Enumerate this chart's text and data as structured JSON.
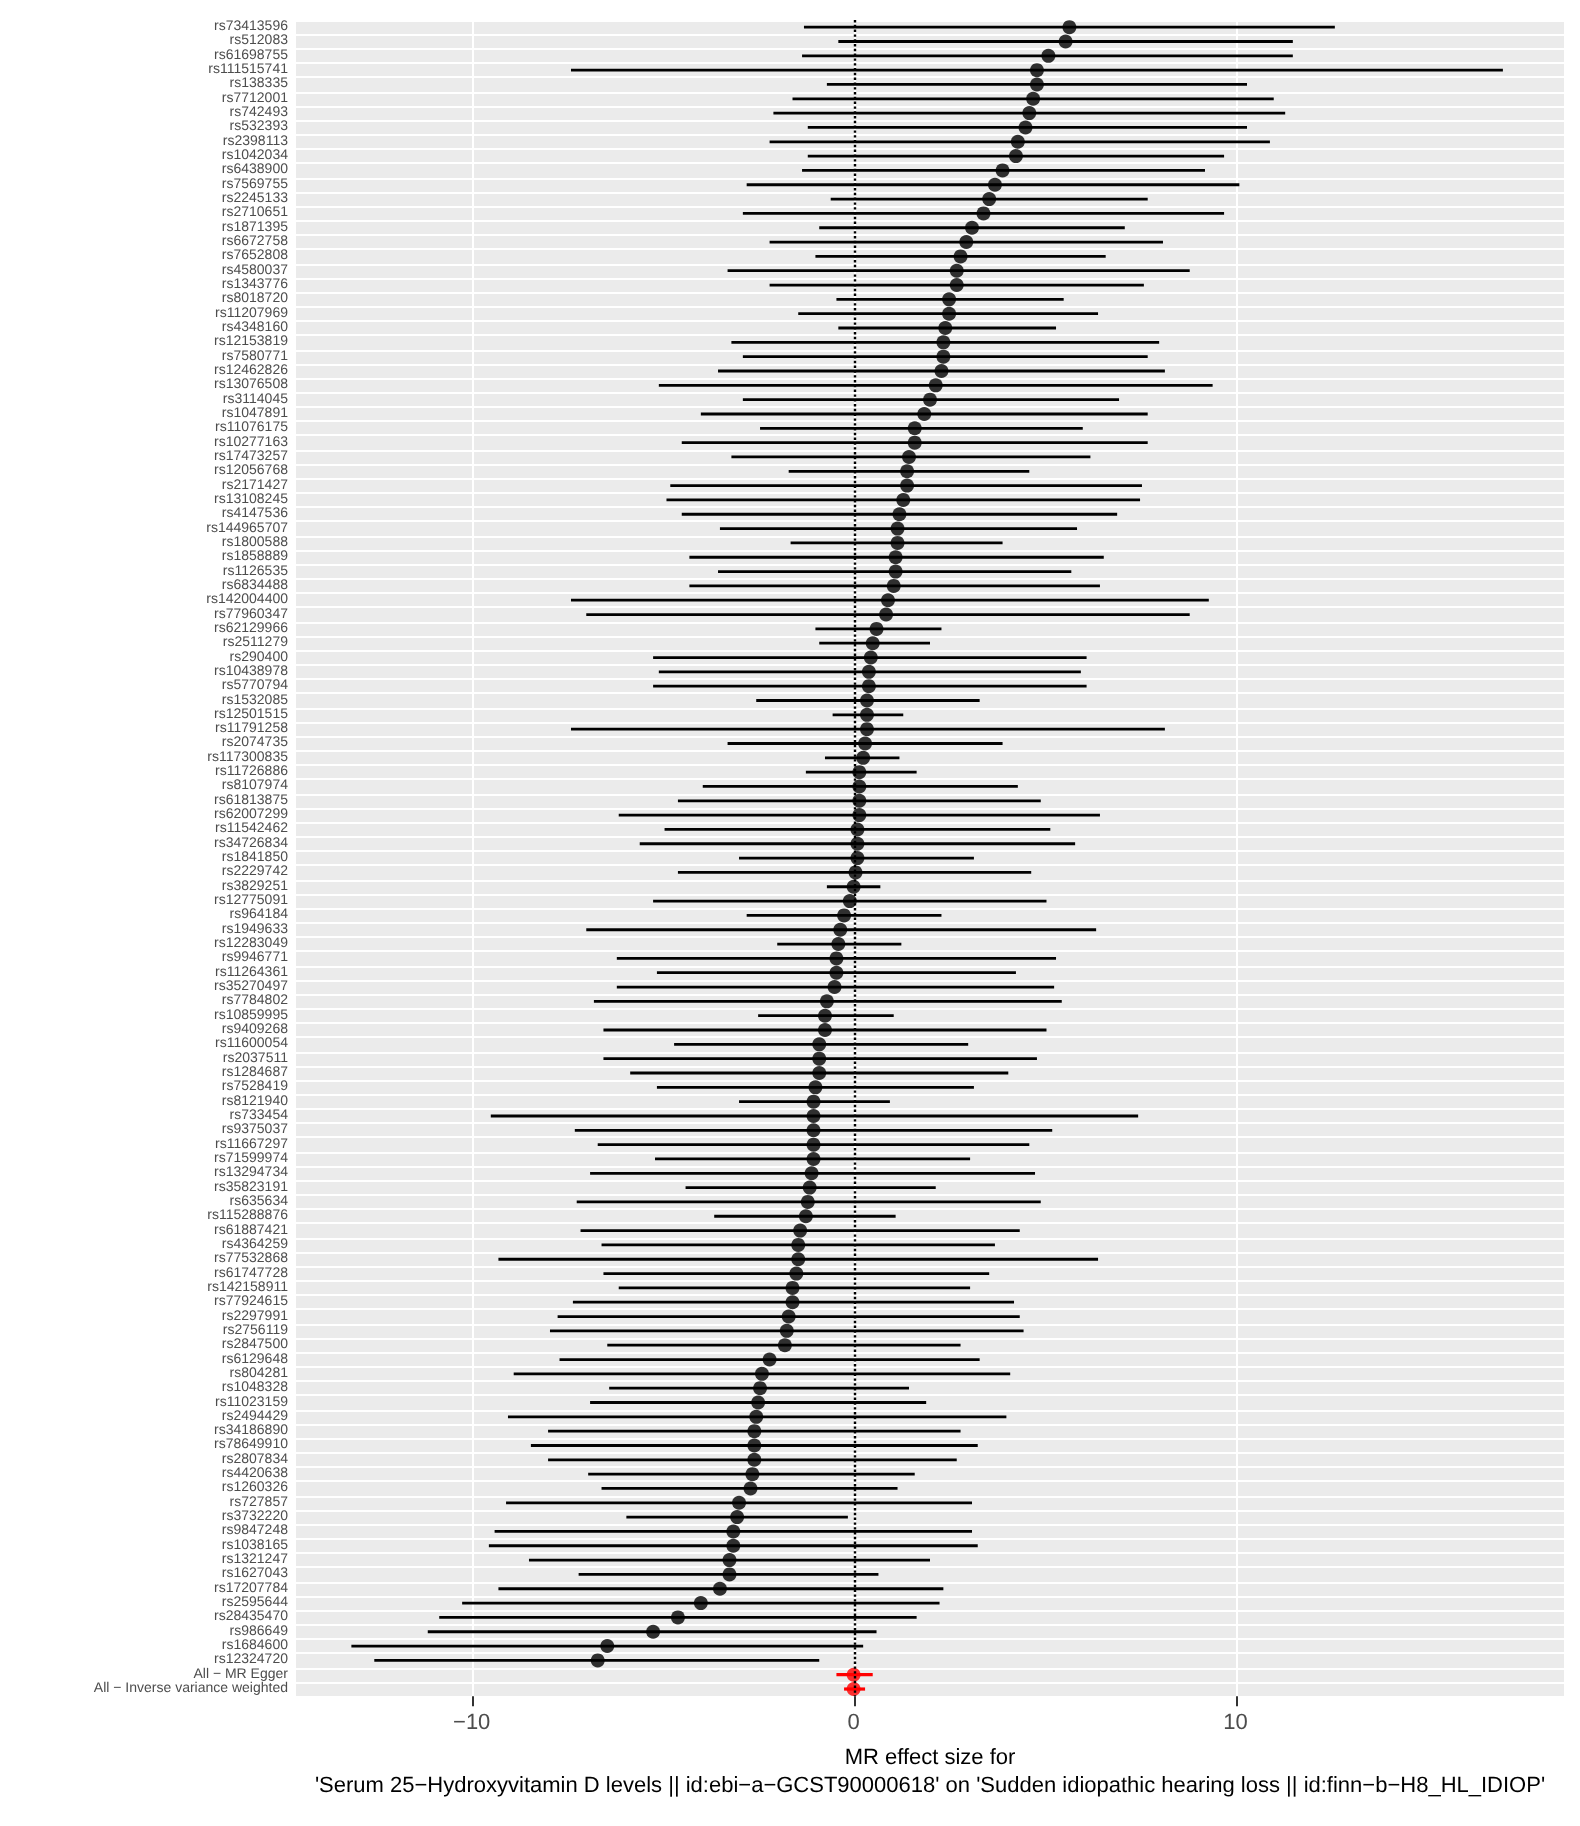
{
  "chart_data": {
    "type": "scatter",
    "orientation": "horizontal",
    "xlabel": "MR effect size for\n'Serum 25−Hydroxyvitamin D levels || id:ebi−a−GCST90000618' on 'Sudden idiopathic hearing loss || id:finn−b−H8_HL_IDIOP'",
    "categories": [
      "rs73413596",
      "rs512083",
      "rs61698755",
      "rs111515741",
      "rs138335",
      "rs7712001",
      "rs742493",
      "rs532393",
      "rs2398113",
      "rs1042034",
      "rs6438900",
      "rs7569755",
      "rs2245133",
      "rs2710651",
      "rs1871395",
      "rs6672758",
      "rs7652808",
      "rs4580037",
      "rs1343776",
      "rs8018720",
      "rs11207969",
      "rs4348160",
      "rs12153819",
      "rs7580771",
      "rs12462826",
      "rs13076508",
      "rs3114045",
      "rs1047891",
      "rs11076175",
      "rs10277163",
      "rs17473257",
      "rs12056768",
      "rs2171427",
      "rs13108245",
      "rs4147536",
      "rs144965707",
      "rs1800588",
      "rs1858889",
      "rs1126535",
      "rs6834488",
      "rs142004400",
      "rs77960347",
      "rs62129966",
      "rs2511279",
      "rs290400",
      "rs10438978",
      "rs5770794",
      "rs1532085",
      "rs12501515",
      "rs11791258",
      "rs2074735",
      "rs117300835",
      "rs11726886",
      "rs8107974",
      "rs61813875",
      "rs62007299",
      "rs11542462",
      "rs34726834",
      "rs1841850",
      "rs2229742",
      "rs3829251",
      "rs12775091",
      "rs964184",
      "rs1949633",
      "rs12283049",
      "rs9946771",
      "rs11264361",
      "rs35270497",
      "rs7784802",
      "rs10859995",
      "rs9409268",
      "rs11600054",
      "rs2037511",
      "rs1284687",
      "rs7528419",
      "rs8121940",
      "rs733454",
      "rs9375037",
      "rs11667297",
      "rs71599974",
      "rs13294734",
      "rs35823191",
      "rs635634",
      "rs115288876",
      "rs61887421",
      "rs4364259",
      "rs77532868",
      "rs61747728",
      "rs142158911",
      "rs77924615",
      "rs2297991",
      "rs2756119",
      "rs2847500",
      "rs6129648",
      "rs804281",
      "rs1048328",
      "rs11023159",
      "rs2494429",
      "rs34186890",
      "rs78649910",
      "rs2807834",
      "rs4420638",
      "rs1260326",
      "rs727857",
      "rs3732220",
      "rs9847248",
      "rs1038165",
      "rs1321247",
      "rs1627043",
      "rs17207784",
      "rs2595644",
      "rs28435470",
      "rs986649",
      "rs1684600",
      "rs12324720",
      "All − MR Egger",
      "All − Inverse variance weighted"
    ],
    "values": [
      5.65,
      5.55,
      5.1,
      4.8,
      4.8,
      4.7,
      4.6,
      4.5,
      4.3,
      4.25,
      3.9,
      3.7,
      3.55,
      3.4,
      3.1,
      2.95,
      2.8,
      2.7,
      2.7,
      2.5,
      2.5,
      2.4,
      2.35,
      2.35,
      2.3,
      2.15,
      2.0,
      1.85,
      1.6,
      1.6,
      1.45,
      1.4,
      1.4,
      1.3,
      1.2,
      1.15,
      1.15,
      1.1,
      1.1,
      1.05,
      0.9,
      0.85,
      0.6,
      0.5,
      0.45,
      0.4,
      0.4,
      0.35,
      0.35,
      0.35,
      0.3,
      0.25,
      0.15,
      0.15,
      0.15,
      0.15,
      0.1,
      0.1,
      0.1,
      0.05,
      0,
      -0.1,
      -0.25,
      -0.35,
      -0.4,
      -0.45,
      -0.45,
      -0.5,
      -0.7,
      -0.75,
      -0.75,
      -0.9,
      -0.9,
      -0.9,
      -1.0,
      -1.05,
      -1.05,
      -1.05,
      -1.05,
      -1.05,
      -1.1,
      -1.15,
      -1.2,
      -1.25,
      -1.4,
      -1.45,
      -1.45,
      -1.5,
      -1.6,
      -1.6,
      -1.7,
      -1.75,
      -1.8,
      -2.2,
      -2.4,
      -2.45,
      -2.5,
      -2.55,
      -2.6,
      -2.6,
      -2.6,
      -2.65,
      -2.7,
      -3.0,
      -3.05,
      -3.15,
      -3.15,
      -3.25,
      -3.25,
      -3.5,
      -4.0,
      -4.6,
      -5.25,
      -6.45,
      -6.7,
      0,
      0
    ],
    "errors": [
      [
        -1.3,
        12.6
      ],
      [
        -0.4,
        11.5
      ],
      [
        -1.35,
        11.5
      ],
      [
        -7.4,
        17.0
      ],
      [
        -0.7,
        10.3
      ],
      [
        -1.6,
        11.0
      ],
      [
        -2.1,
        11.3
      ],
      [
        -1.2,
        10.3
      ],
      [
        -2.2,
        10.9
      ],
      [
        -1.2,
        9.7
      ],
      [
        -1.35,
        9.2
      ],
      [
        -2.8,
        10.1
      ],
      [
        -0.6,
        7.7
      ],
      [
        -2.9,
        9.7
      ],
      [
        -0.9,
        7.1
      ],
      [
        -2.2,
        8.1
      ],
      [
        -1.0,
        6.6
      ],
      [
        -3.3,
        8.8
      ],
      [
        -2.2,
        7.6
      ],
      [
        -0.45,
        5.5
      ],
      [
        -1.45,
        6.4
      ],
      [
        -0.4,
        5.3
      ],
      [
        -3.2,
        8.0
      ],
      [
        -2.9,
        7.7
      ],
      [
        -3.55,
        8.15
      ],
      [
        -5.1,
        9.4
      ],
      [
        -2.9,
        6.95
      ],
      [
        -4.0,
        7.7
      ],
      [
        -2.45,
        6.0
      ],
      [
        -4.5,
        7.7
      ],
      [
        -3.2,
        6.2
      ],
      [
        -1.7,
        4.6
      ],
      [
        -4.8,
        7.55
      ],
      [
        -4.9,
        7.5
      ],
      [
        -4.5,
        6.9
      ],
      [
        -3.5,
        5.85
      ],
      [
        -1.65,
        3.9
      ],
      [
        -4.3,
        6.55
      ],
      [
        -3.55,
        5.7
      ],
      [
        -4.3,
        6.45
      ],
      [
        -7.4,
        9.3
      ],
      [
        -7.0,
        8.8
      ],
      [
        -1.0,
        2.3
      ],
      [
        -0.9,
        2.0
      ],
      [
        -5.25,
        6.1
      ],
      [
        -5.1,
        5.95
      ],
      [
        -5.25,
        6.1
      ],
      [
        -2.55,
        3.3
      ],
      [
        -0.55,
        1.3
      ],
      [
        -7.4,
        8.15
      ],
      [
        -3.3,
        3.9
      ],
      [
        -0.75,
        1.2
      ],
      [
        -1.25,
        1.65
      ],
      [
        -3.95,
        4.3
      ],
      [
        -4.6,
        4.9
      ],
      [
        -6.15,
        6.45
      ],
      [
        -4.95,
        5.15
      ],
      [
        -5.6,
        5.8
      ],
      [
        -3.0,
        3.15
      ],
      [
        -4.6,
        4.65
      ],
      [
        -0.7,
        0.7
      ],
      [
        -5.25,
        5.05
      ],
      [
        -2.8,
        2.3
      ],
      [
        -7.0,
        6.35
      ],
      [
        -2.0,
        1.25
      ],
      [
        -6.2,
        5.3
      ],
      [
        -5.15,
        4.25
      ],
      [
        -6.2,
        5.25
      ],
      [
        -6.8,
        5.45
      ],
      [
        -2.5,
        1.05
      ],
      [
        -6.55,
        5.05
      ],
      [
        -4.7,
        3.0
      ],
      [
        -6.55,
        4.8
      ],
      [
        -5.85,
        4.05
      ],
      [
        -5.15,
        3.15
      ],
      [
        -3.0,
        0.95
      ],
      [
        -9.5,
        7.45
      ],
      [
        -7.3,
        5.2
      ],
      [
        -6.7,
        4.6
      ],
      [
        -5.2,
        3.05
      ],
      [
        -6.9,
        4.75
      ],
      [
        -4.4,
        2.15
      ],
      [
        -7.25,
        4.9
      ],
      [
        -3.65,
        1.1
      ],
      [
        -7.15,
        4.35
      ],
      [
        -6.6,
        3.7
      ],
      [
        -9.3,
        6.4
      ],
      [
        -6.55,
        3.55
      ],
      [
        -6.15,
        3.05
      ],
      [
        -7.35,
        4.2
      ],
      [
        -7.75,
        4.35
      ],
      [
        -7.95,
        4.45
      ],
      [
        -6.45,
        2.8
      ],
      [
        -7.7,
        3.3
      ],
      [
        -8.9,
        4.1
      ],
      [
        -6.4,
        1.45
      ],
      [
        -6.9,
        1.9
      ],
      [
        -9.05,
        4.0
      ],
      [
        -8.0,
        2.8
      ],
      [
        -8.45,
        3.25
      ],
      [
        -8.0,
        2.7
      ],
      [
        -6.95,
        1.6
      ],
      [
        -6.6,
        1.15
      ],
      [
        -9.1,
        3.1
      ],
      [
        -5.95,
        -0.15
      ],
      [
        -9.4,
        3.1
      ],
      [
        -9.55,
        3.25
      ],
      [
        -8.5,
        2.0
      ],
      [
        -7.2,
        0.65
      ],
      [
        -9.3,
        2.35
      ],
      [
        -10.25,
        2.25
      ],
      [
        -10.85,
        1.65
      ],
      [
        -11.15,
        0.6
      ],
      [
        -13.15,
        0.25
      ],
      [
        -12.55,
        -0.9
      ],
      [
        -0.45,
        0.5
      ],
      [
        -0.25,
        0.3
      ]
    ],
    "colors": [
      "#000000",
      "#000000",
      "#000000",
      "#000000",
      "#000000",
      "#000000",
      "#000000",
      "#000000",
      "#000000",
      "#000000",
      "#000000",
      "#000000",
      "#000000",
      "#000000",
      "#000000",
      "#000000",
      "#000000",
      "#000000",
      "#000000",
      "#000000",
      "#000000",
      "#000000",
      "#000000",
      "#000000",
      "#000000",
      "#000000",
      "#000000",
      "#000000",
      "#000000",
      "#000000",
      "#000000",
      "#000000",
      "#000000",
      "#000000",
      "#000000",
      "#000000",
      "#000000",
      "#000000",
      "#000000",
      "#000000",
      "#000000",
      "#000000",
      "#000000",
      "#000000",
      "#000000",
      "#000000",
      "#000000",
      "#000000",
      "#000000",
      "#000000",
      "#000000",
      "#000000",
      "#000000",
      "#000000",
      "#000000",
      "#000000",
      "#000000",
      "#000000",
      "#000000",
      "#000000",
      "#000000",
      "#000000",
      "#000000",
      "#000000",
      "#000000",
      "#000000",
      "#000000",
      "#000000",
      "#000000",
      "#000000",
      "#000000",
      "#000000",
      "#000000",
      "#000000",
      "#000000",
      "#000000",
      "#000000",
      "#000000",
      "#000000",
      "#000000",
      "#000000",
      "#000000",
      "#000000",
      "#000000",
      "#000000",
      "#000000",
      "#000000",
      "#000000",
      "#000000",
      "#000000",
      "#000000",
      "#000000",
      "#000000",
      "#000000",
      "#000000",
      "#000000",
      "#000000",
      "#000000",
      "#000000",
      "#000000",
      "#000000",
      "#000000",
      "#000000",
      "#000000",
      "#000000",
      "#000000",
      "#000000",
      "#000000",
      "#000000",
      "#000000",
      "#000000",
      "#000000",
      "#000000",
      "#000000",
      "#000000",
      "#ff0000",
      "#ff0000"
    ],
    "xlim": [
      -14.6,
      18.6
    ],
    "xticks": [
      -10,
      0,
      10
    ],
    "ref_lines": [
      {
        "axis": "x",
        "value": 0,
        "line_style": "dotted"
      }
    ],
    "grid": true,
    "marker": "circle"
  }
}
